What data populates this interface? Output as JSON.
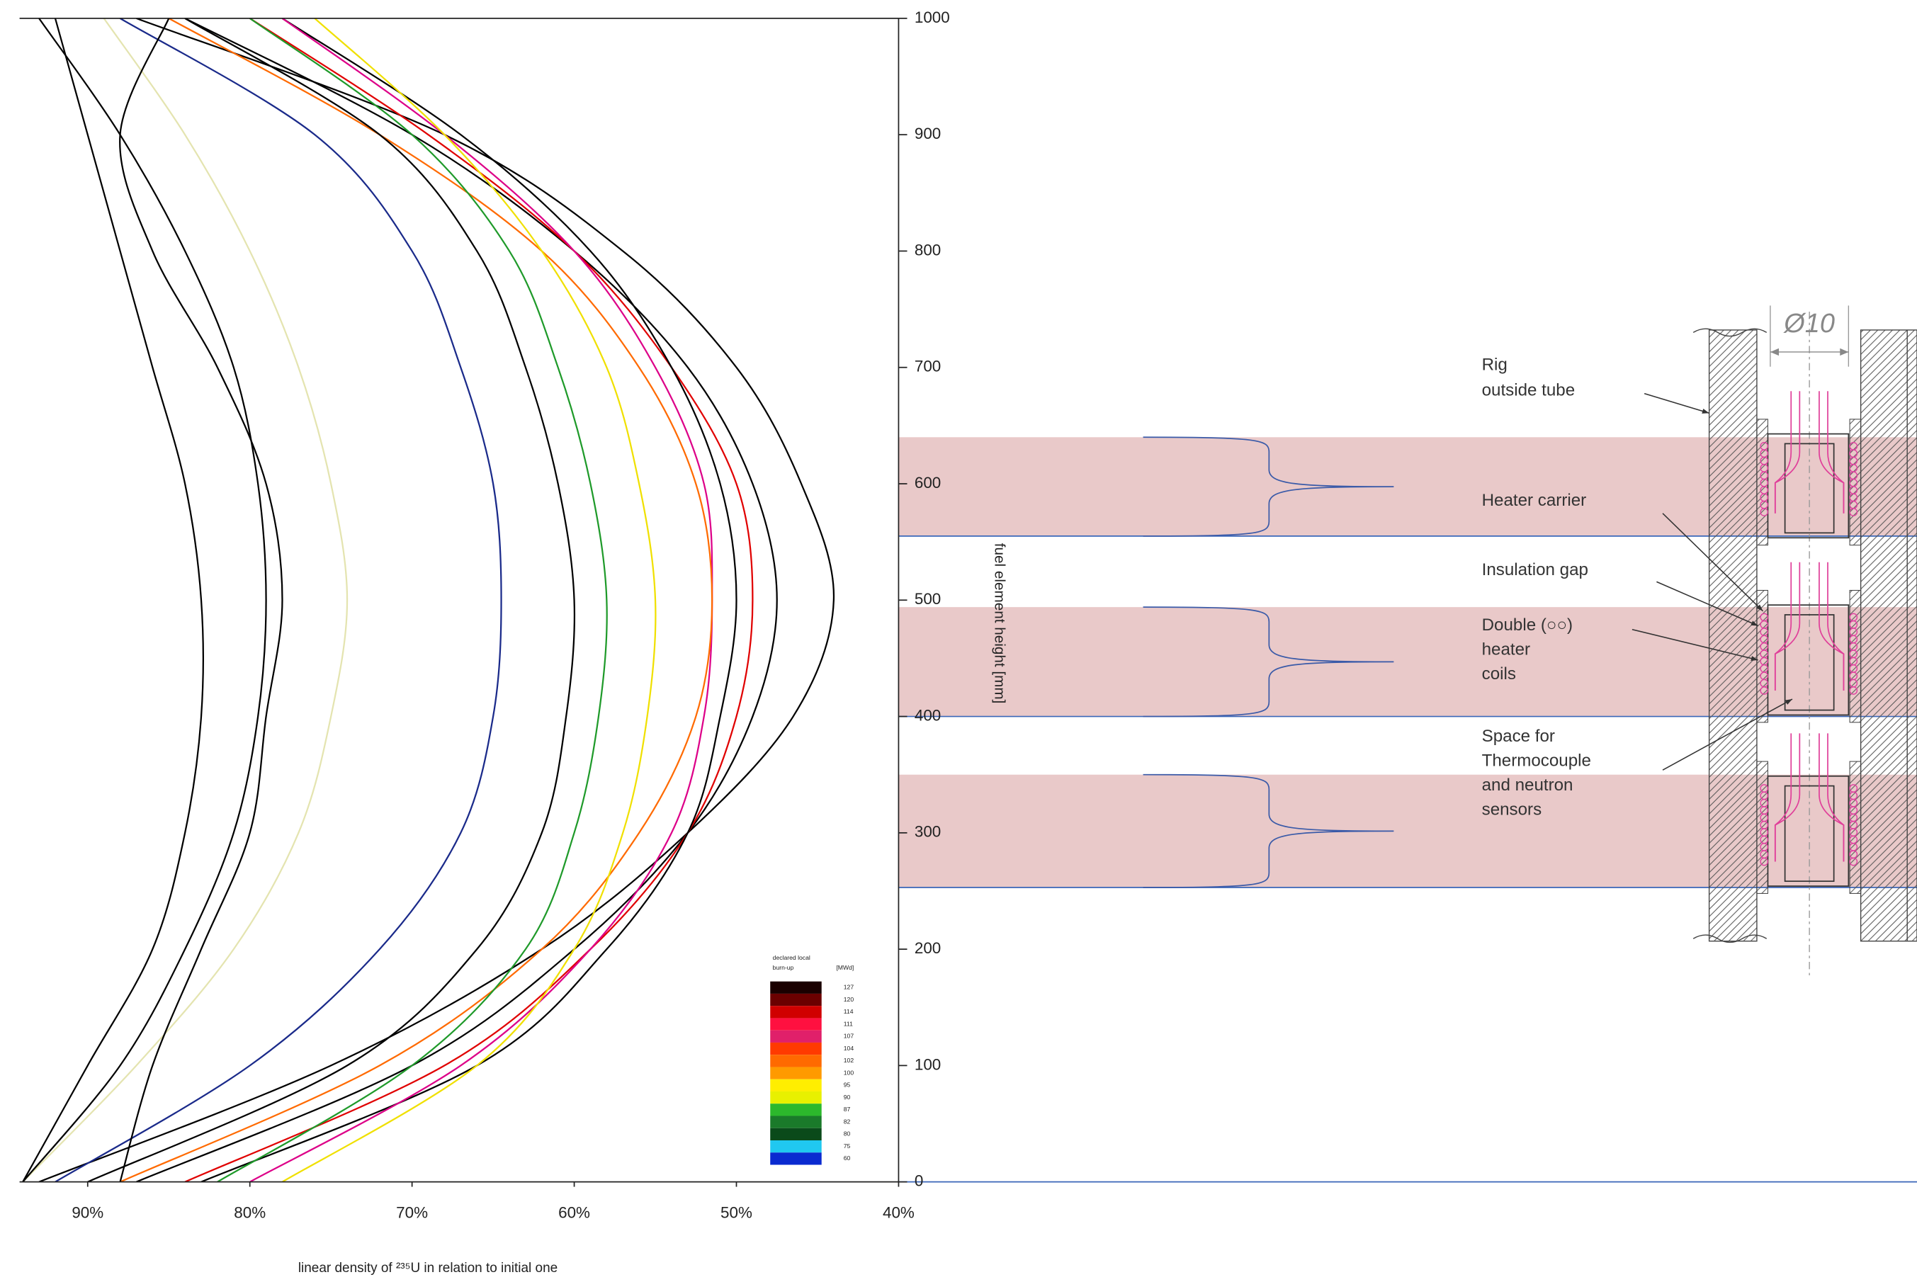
{
  "chart_data": {
    "type": "line",
    "x_label": "linear density of ²³⁵U in relation to initial one",
    "y_label": "fuel element height [mm]",
    "xlim": [
      94.2,
      40
    ],
    "xticks": [
      {
        "value": 90,
        "label": "90%"
      },
      {
        "value": 80,
        "label": "80%"
      },
      {
        "value": 70,
        "label": "70%"
      },
      {
        "value": 60,
        "label": "60%"
      },
      {
        "value": 50,
        "label": "50%"
      },
      {
        "value": 40,
        "label": "40%"
      }
    ],
    "ylim": [
      0,
      1000
    ],
    "yticks": [
      0,
      100,
      200,
      300,
      400,
      500,
      600,
      700,
      800,
      900,
      1000
    ],
    "heights": [
      0,
      100,
      200,
      300,
      400,
      500,
      600,
      700,
      800,
      900,
      1000
    ],
    "series": [
      {
        "color": "#000000",
        "values": [
          93,
          75,
          62,
          53,
          46.5,
          44,
          46,
          50,
          57,
          68,
          87
        ]
      },
      {
        "color": "#000000",
        "values": [
          87,
          70,
          60,
          53,
          49,
          47.5,
          49,
          53,
          60,
          70,
          84
        ]
      },
      {
        "color": "#e00000",
        "values": [
          84,
          68,
          59,
          53,
          50,
          49,
          50,
          54,
          60,
          69,
          80
        ]
      },
      {
        "color": "#000000",
        "values": [
          83,
          66,
          58,
          53,
          51,
          50,
          51,
          54,
          59,
          67,
          78
        ]
      },
      {
        "color": "#dd0088",
        "values": [
          80,
          67,
          59,
          54,
          52,
          51.5,
          52,
          55,
          60,
          68,
          78
        ]
      },
      {
        "color": "#ff6a00",
        "values": [
          88,
          72,
          62,
          56,
          52.5,
          51.5,
          52.5,
          56,
          62,
          72,
          85
        ]
      },
      {
        "color": "#f0e000",
        "values": [
          78,
          66,
          60,
          57,
          55.5,
          55,
          56,
          58,
          62,
          68,
          76
        ]
      },
      {
        "color": "#1f9a2a",
        "values": [
          82,
          70,
          63,
          60,
          58.5,
          58,
          59,
          61,
          64,
          70,
          80
        ]
      },
      {
        "color": "#000000",
        "values": [
          90,
          74,
          66,
          62,
          60.5,
          60,
          61,
          63,
          66,
          72,
          84
        ]
      },
      {
        "color": "#1a2a8a",
        "values": [
          92,
          80,
          72,
          67,
          65,
          64.5,
          65,
          67,
          70,
          76,
          88
        ]
      },
      {
        "color": "#e4e4b0",
        "values": [
          94,
          87,
          81,
          77,
          75,
          74,
          75,
          77,
          80,
          84,
          89
        ]
      },
      {
        "color": "#000000",
        "values": [
          94,
          88,
          84,
          81,
          79.5,
          79,
          79.5,
          81,
          84,
          88,
          93
        ]
      },
      {
        "color": "#000000",
        "values": [
          88,
          86,
          83,
          80,
          79,
          78,
          79,
          82,
          86,
          88,
          85
        ]
      },
      {
        "color": "#000000",
        "values": [
          94,
          90,
          86,
          84,
          83,
          83,
          84,
          86,
          88,
          90,
          92
        ]
      }
    ],
    "legend": {
      "title": [
        "declared local",
        "burn-up"
      ],
      "unit": "[MWd]",
      "entries": [
        {
          "value": 127,
          "color": "#1a0000"
        },
        {
          "value": 120,
          "color": "#6b0000"
        },
        {
          "value": 114,
          "color": "#d00000"
        },
        {
          "value": 111,
          "color": "#ff1040"
        },
        {
          "value": 107,
          "color": "#e0206a"
        },
        {
          "value": 104,
          "color": "#ff3a00"
        },
        {
          "value": 102,
          "color": "#ff6a00"
        },
        {
          "value": 100,
          "color": "#ff9a00"
        },
        {
          "value": 95,
          "color": "#ffee00"
        },
        {
          "value": 90,
          "color": "#e8f000"
        },
        {
          "value": 87,
          "color": "#2cb82c"
        },
        {
          "value": 82,
          "color": "#1a7a2a"
        },
        {
          "value": 80,
          "color": "#0a4a1a"
        },
        {
          "value": 75,
          "color": "#20c8f0"
        },
        {
          "value": 60,
          "color": "#0a2ad0"
        }
      ]
    },
    "heater_zones": [
      {
        "from": 555,
        "to": 640
      },
      {
        "from": 400,
        "to": 494
      },
      {
        "from": 253,
        "to": 350
      }
    ]
  },
  "diagram": {
    "labels": [
      {
        "lines": [
          "Rig",
          "outside tube"
        ]
      },
      {
        "lines": [
          "Heater carrier"
        ]
      },
      {
        "lines": [
          "Insulation gap"
        ]
      },
      {
        "lines": [
          "Double (○○)",
          "heater",
          "coils"
        ]
      },
      {
        "lines": [
          "Space for",
          "Thermocouple",
          "and neutron",
          "sensors"
        ]
      }
    ],
    "dimension": "Ø10"
  }
}
